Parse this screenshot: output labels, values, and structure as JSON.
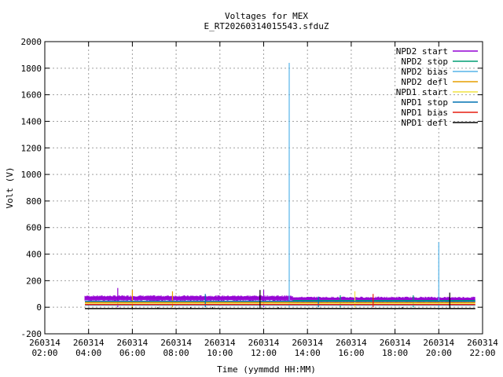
{
  "chart_data": {
    "type": "line",
    "title": "Voltages for MEX",
    "subtitle": "E_RT20260314015543.sfduZ",
    "xlabel": "Time (yymmdd HH:MM)",
    "ylabel": "Volt (V)",
    "xlim": [
      "260314 02:00",
      "260314 22:00"
    ],
    "ylim": [
      -200,
      2000
    ],
    "x_ticks": [
      {
        "date": "260314",
        "time": "02:00"
      },
      {
        "date": "260314",
        "time": "04:00"
      },
      {
        "date": "260314",
        "time": "06:00"
      },
      {
        "date": "260314",
        "time": "08:00"
      },
      {
        "date": "260314",
        "time": "10:00"
      },
      {
        "date": "260314",
        "time": "12:00"
      },
      {
        "date": "260314",
        "time": "14:00"
      },
      {
        "date": "260314",
        "time": "16:00"
      },
      {
        "date": "260314",
        "time": "18:00"
      },
      {
        "date": "260314",
        "time": "20:00"
      },
      {
        "date": "260314",
        "time": "22:00"
      }
    ],
    "y_ticks": [
      "-200",
      "0",
      "200",
      "400",
      "600",
      "800",
      "1000",
      "1200",
      "1400",
      "1600",
      "1800",
      "2000"
    ],
    "grid": true,
    "legend_position": "top-right",
    "series": [
      {
        "name": "NPD2 start",
        "color": "#9400d3",
        "x": [
          "260314 03:50",
          "260314 13:20",
          "260314 21:40"
        ],
        "y": [
          70,
          70,
          60
        ],
        "spikes": [
          {
            "x": "260314 05:20",
            "y": 145
          },
          {
            "x": "260314 12:00",
            "y": 130
          }
        ]
      },
      {
        "name": "NPD2 stop",
        "color": "#009e73",
        "x": [
          "260314 13:20",
          "260314 21:40"
        ],
        "y": [
          50,
          50
        ],
        "spikes": [
          {
            "x": "260314 15:30",
            "y": 90
          },
          {
            "x": "260314 18:50",
            "y": 90
          }
        ]
      },
      {
        "name": "NPD2 bias",
        "color": "#56b4e9",
        "x": [
          "260314 03:50",
          "260314 21:40"
        ],
        "y": [
          15,
          15
        ],
        "spikes": [
          {
            "x": "260314 13:10",
            "y": 1840
          },
          {
            "x": "260314 20:00",
            "y": 490
          }
        ]
      },
      {
        "name": "NPD2 defl",
        "color": "#e69f00",
        "x": [
          "260314 03:50",
          "260314 21:40"
        ],
        "y": [
          35,
          35
        ],
        "spikes": [
          {
            "x": "260314 06:00",
            "y": 130
          },
          {
            "x": "260314 07:50",
            "y": 120
          }
        ]
      },
      {
        "name": "NPD1 start",
        "color": "#f0e442",
        "x": [
          "260314 03:50",
          "260314 21:40"
        ],
        "y": [
          25,
          25
        ],
        "spikes": [
          {
            "x": "260314 16:10",
            "y": 120
          }
        ]
      },
      {
        "name": "NPD1 stop",
        "color": "#0072b2",
        "x": [
          "260314 03:50",
          "260314 21:40"
        ],
        "y": [
          45,
          45
        ],
        "spikes": [
          {
            "x": "260314 09:20",
            "y": 100
          },
          {
            "x": "260314 14:30",
            "y": 80
          }
        ]
      },
      {
        "name": "NPD1 bias",
        "color": "#e51e10",
        "x": [
          "260314 03:50",
          "260314 21:40"
        ],
        "y": [
          20,
          20
        ],
        "spikes": [
          {
            "x": "260314 17:00",
            "y": 100
          }
        ]
      },
      {
        "name": "NPD1 defl",
        "color": "#000000",
        "x": [
          "260314 03:50",
          "260314 21:40"
        ],
        "y": [
          -10,
          -10
        ],
        "spikes": [
          {
            "x": "260314 06:00",
            "y": -10
          },
          {
            "x": "260314 07:10",
            "y": -10
          },
          {
            "x": "260314 08:40",
            "y": -10
          },
          {
            "x": "260314 09:40",
            "y": -10
          },
          {
            "x": "260314 11:50",
            "y": 130
          },
          {
            "x": "260314 12:40",
            "y": -10
          },
          {
            "x": "260314 18:20",
            "y": -10
          },
          {
            "x": "260314 20:30",
            "y": 110
          }
        ]
      }
    ]
  }
}
